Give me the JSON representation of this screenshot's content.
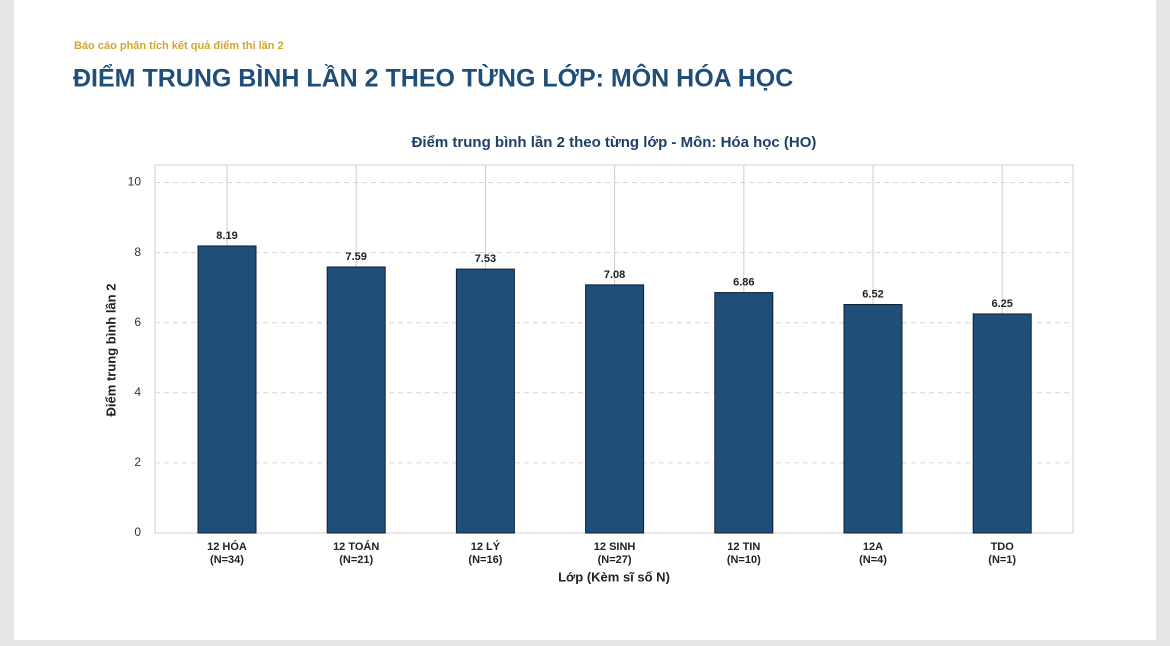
{
  "header": {
    "subtitle": "Báo cáo phân tích kết quả điểm thi lần 2",
    "title": "ĐIỂM TRUNG BÌNH LẦN 2 THEO TỪNG LỚP: MÔN HÓA HỌC"
  },
  "chart_data": {
    "type": "bar",
    "title": "Điểm trung bình lần 2 theo từng lớp - Môn: Hóa học (HO)",
    "y_label": "Điểm trung bình lần 2",
    "x_label": "Lớp (Kèm sĩ số N)",
    "categories": [
      "12 HÓA",
      "12 TOÁN",
      "12 LÝ",
      "12 SINH",
      "12 TIN",
      "12A",
      "TDO"
    ],
    "category_counts": [
      "(N=34)",
      "(N=21)",
      "(N=16)",
      "(N=27)",
      "(N=10)",
      "(N=4)",
      "(N=1)"
    ],
    "values": [
      8.19,
      7.59,
      7.53,
      7.08,
      6.86,
      6.52,
      6.25
    ],
    "color": "#1f4e79",
    "ylim": [
      0,
      10.5
    ],
    "yticks": [
      0,
      2,
      4,
      6,
      8,
      10
    ],
    "grid": true
  }
}
